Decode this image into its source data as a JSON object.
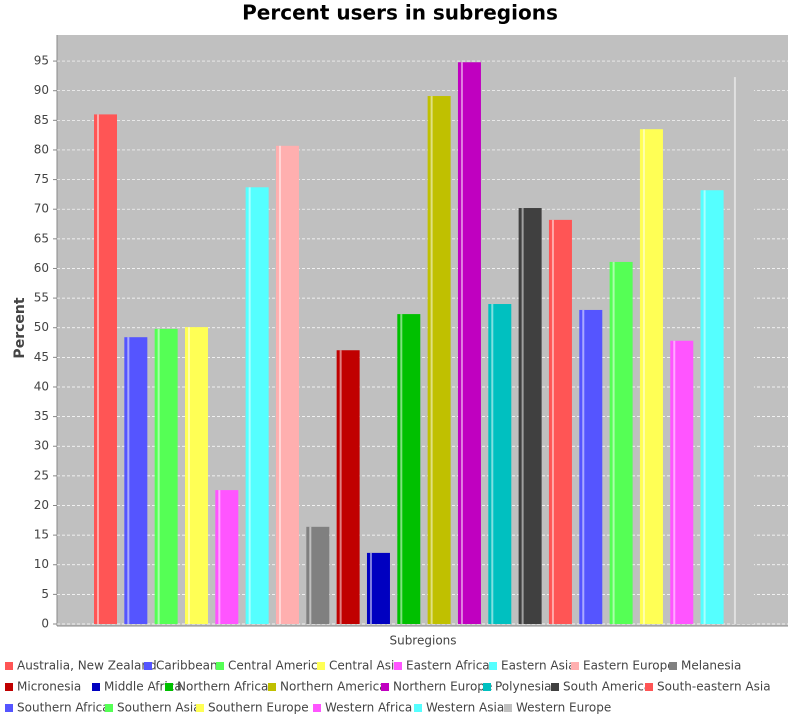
{
  "chart_data": {
    "type": "bar",
    "title": "Percent users in subregions",
    "x_label": "Subregions",
    "y_label": "Percent",
    "ylim": [
      0,
      99.4
    ],
    "yticks": [
      0,
      5,
      10,
      15,
      20,
      25,
      30,
      35,
      40,
      45,
      50,
      55,
      60,
      65,
      70,
      75,
      80,
      85,
      90,
      95
    ],
    "grid": true,
    "series": [
      {
        "name": "Australia, New Zealand",
        "color": "#ff5555",
        "values": [
          86
        ]
      },
      {
        "name": "Caribbean",
        "color": "#5555ff",
        "values": [
          48.4
        ]
      },
      {
        "name": "Central America",
        "color": "#55ff55",
        "values": [
          49.8
        ]
      },
      {
        "name": "Central Asia",
        "color": "#ffff55",
        "values": [
          50.1
        ]
      },
      {
        "name": "Eastern Africa",
        "color": "#ff55ff",
        "values": [
          22.6
        ]
      },
      {
        "name": "Eastern Asia",
        "color": "#55ffff",
        "values": [
          73.7
        ]
      },
      {
        "name": "Eastern Europe",
        "color": "#ffafaf",
        "values": [
          80.7
        ]
      },
      {
        "name": "Melanesia",
        "color": "#808080",
        "values": [
          16.4
        ]
      },
      {
        "name": "Micronesia",
        "color": "#c00000",
        "values": [
          46.2
        ]
      },
      {
        "name": "Middle Africa",
        "color": "#0000c0",
        "values": [
          12
        ]
      },
      {
        "name": "Northern Africa",
        "color": "#00c000",
        "values": [
          52.3
        ]
      },
      {
        "name": "Northern America",
        "color": "#c0c000",
        "values": [
          89.1
        ]
      },
      {
        "name": "Northern Europe",
        "color": "#c000c0",
        "values": [
          94.8
        ]
      },
      {
        "name": "Polynesia",
        "color": "#00c0c0",
        "values": [
          54
        ]
      },
      {
        "name": "South America",
        "color": "#404040",
        "values": [
          70.2
        ]
      },
      {
        "name": "South-eastern Asia",
        "color": "#ff5555",
        "values": [
          68.2
        ]
      },
      {
        "name": "Southern Africa",
        "color": "#5555ff",
        "values": [
          53
        ]
      },
      {
        "name": "Southern Asia",
        "color": "#55ff55",
        "values": [
          61.1
        ]
      },
      {
        "name": "Southern Europe",
        "color": "#ffff55",
        "values": [
          83.5
        ]
      },
      {
        "name": "Western Africa",
        "color": "#ff55ff",
        "values": [
          47.8
        ]
      },
      {
        "name": "Western Asia",
        "color": "#55ffff",
        "values": [
          73.2
        ]
      },
      {
        "name": "Western Europe",
        "color": "#c0c0c0",
        "values": [
          92.3
        ]
      }
    ]
  }
}
